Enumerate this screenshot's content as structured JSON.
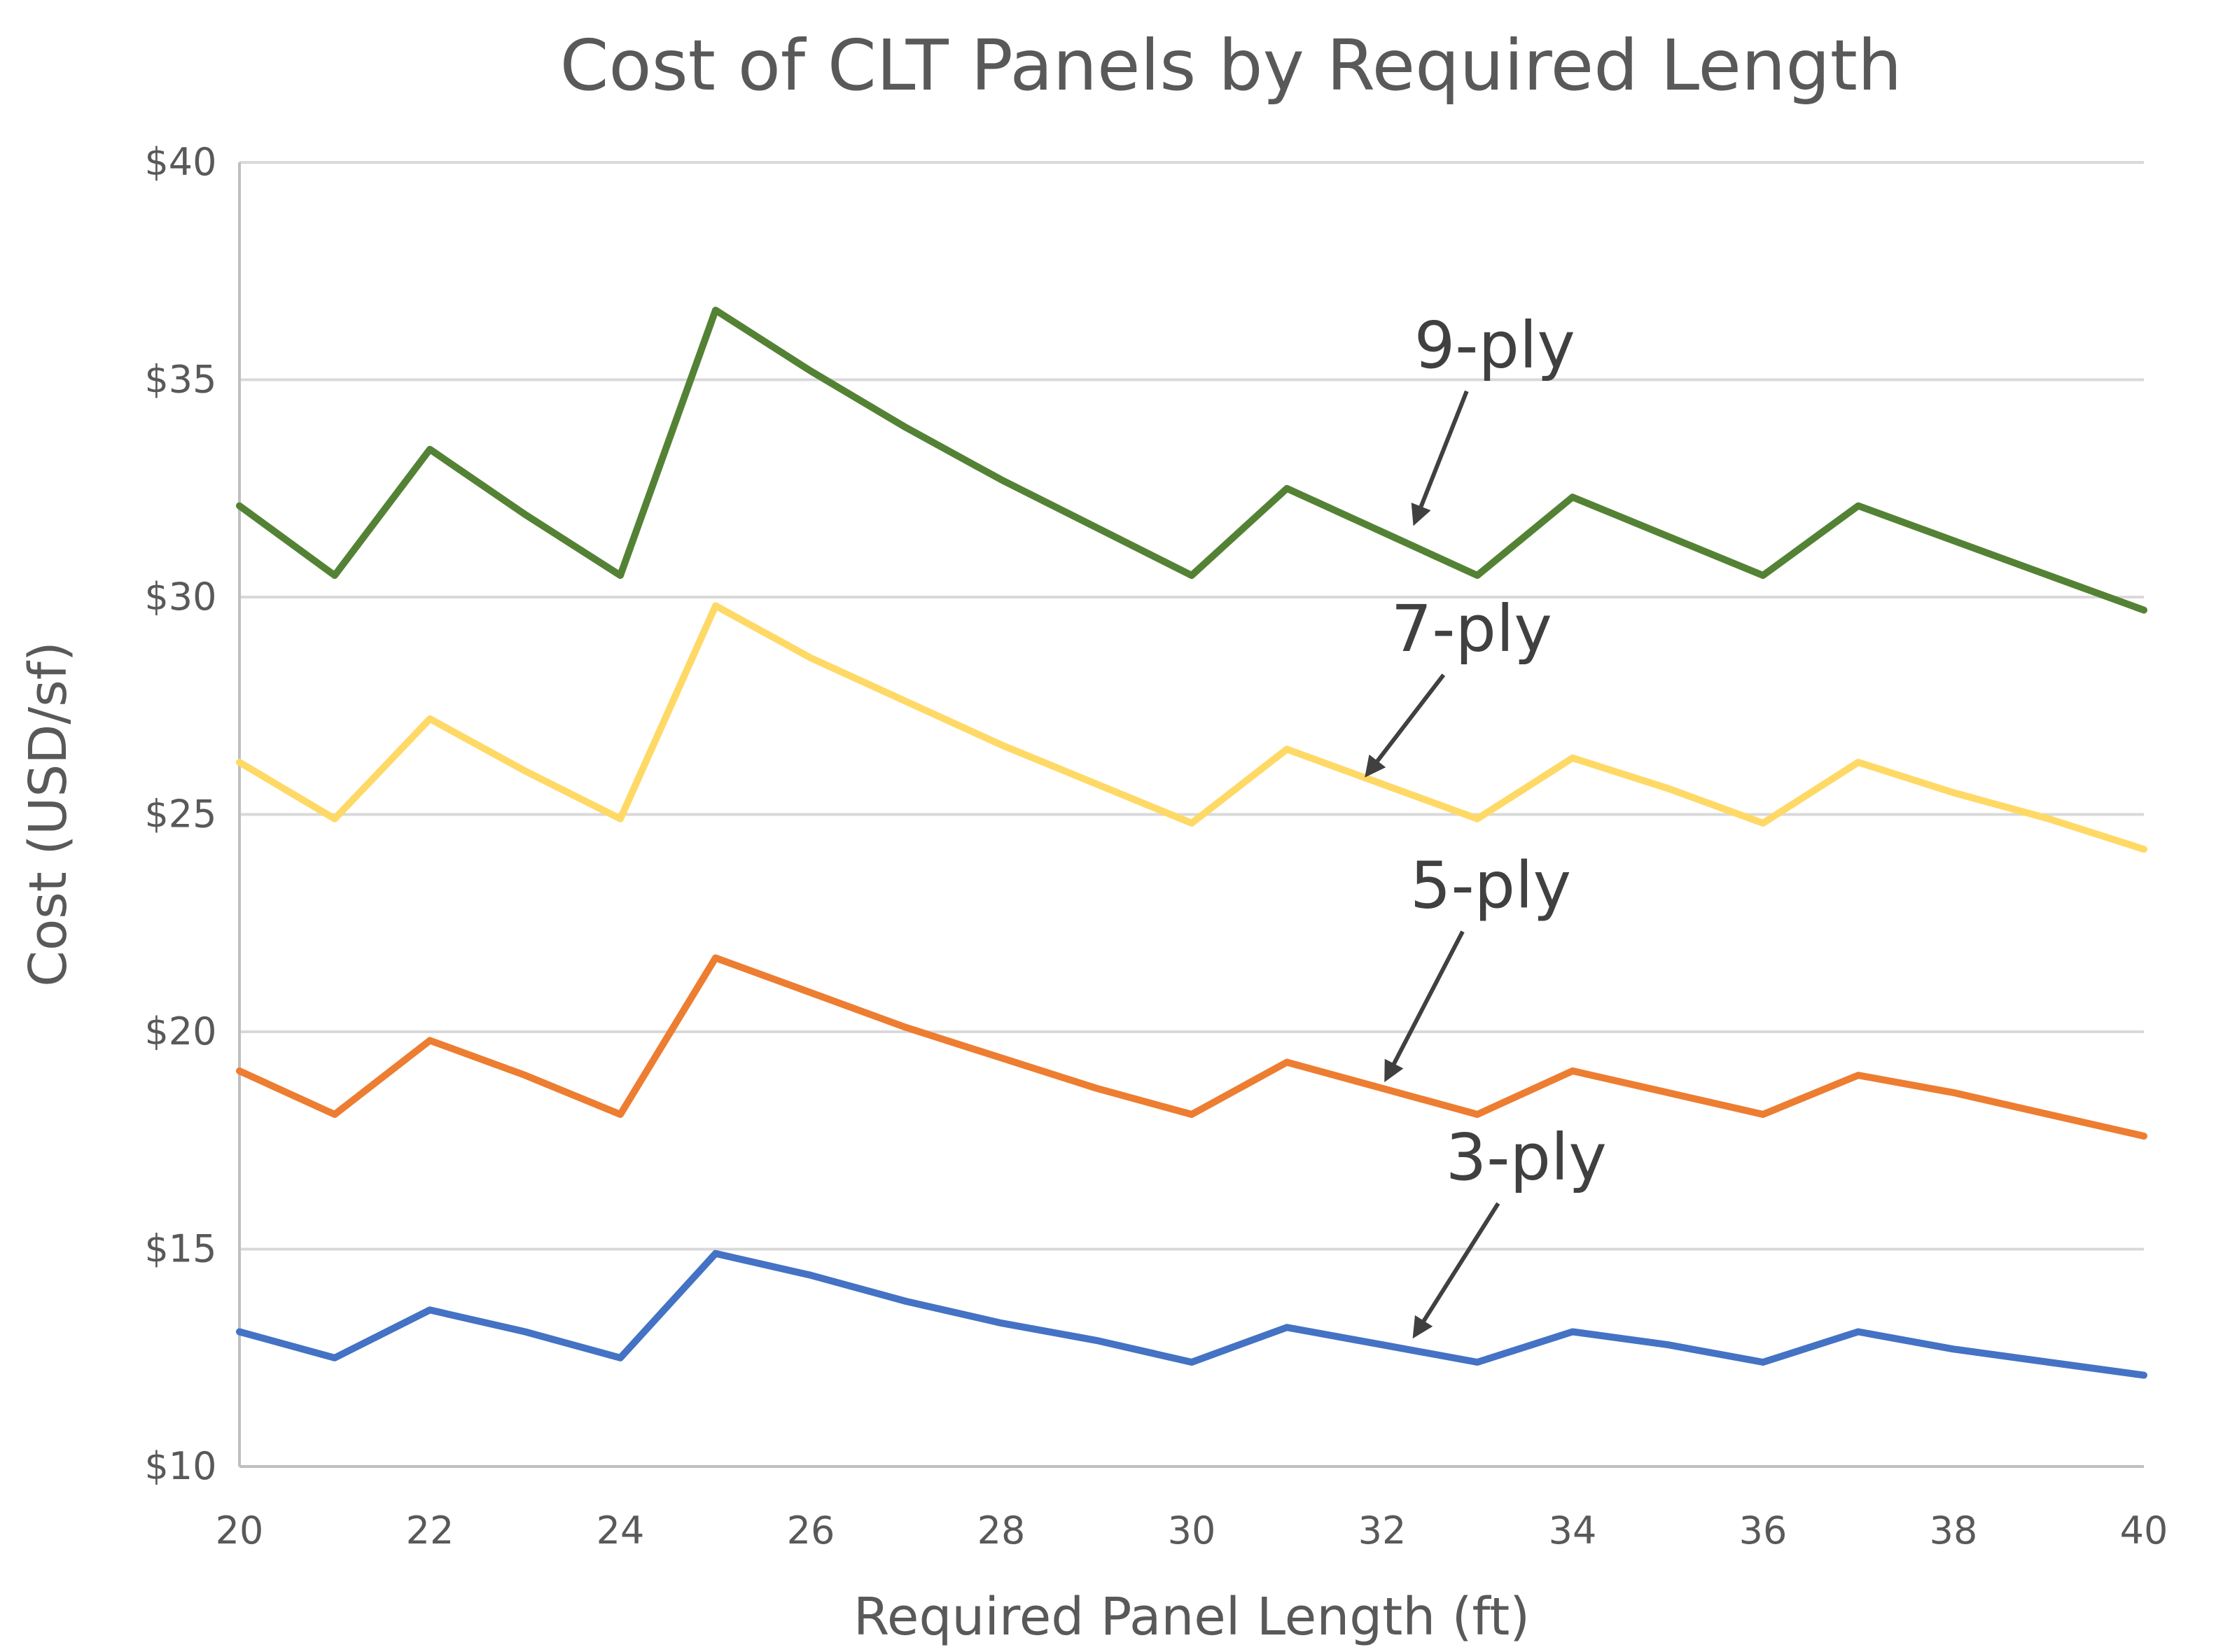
{
  "chart_data": {
    "type": "line",
    "title": "Cost of CLT Panels by Required Length",
    "xlabel": "Required Panel Length (ft)",
    "ylabel": "Cost (USD/sf)",
    "xlim": [
      20,
      40
    ],
    "ylim": [
      10,
      40
    ],
    "x_ticks": [
      20,
      22,
      24,
      26,
      28,
      30,
      32,
      34,
      36,
      38,
      40
    ],
    "x_tick_labels": [
      "20",
      "22",
      "24",
      "26",
      "28",
      "30",
      "32",
      "34",
      "36",
      "38",
      "40"
    ],
    "y_ticks": [
      10,
      15,
      20,
      25,
      30,
      35,
      40
    ],
    "y_tick_labels": [
      "$10",
      "$15",
      "$20",
      "$25",
      "$30",
      "$35",
      "$40"
    ],
    "grid": true,
    "legend": "none",
    "x": [
      20,
      21,
      22,
      23,
      24,
      25,
      26,
      27,
      28,
      29,
      30,
      31,
      32,
      33,
      34,
      35,
      36,
      37,
      38,
      39,
      40
    ],
    "series": [
      {
        "name": "9-ply",
        "color": "#548235",
        "values": [
          32.1,
          30.5,
          33.4,
          31.9,
          30.5,
          36.6,
          35.2,
          33.9,
          32.7,
          31.6,
          30.5,
          32.5,
          31.5,
          30.5,
          32.3,
          31.4,
          30.5,
          32.1,
          31.3,
          30.5,
          29.7
        ],
        "annotation": {
          "text": "9-ply",
          "x": 32.3,
          "y": 31.5
        }
      },
      {
        "name": "7-ply",
        "color": "#FFD966",
        "values": [
          26.2,
          24.9,
          27.2,
          26.0,
          24.9,
          29.8,
          28.6,
          27.6,
          26.6,
          25.7,
          24.8,
          26.5,
          25.7,
          24.9,
          26.3,
          25.6,
          24.8,
          26.2,
          25.5,
          24.9,
          24.2
        ],
        "annotation": {
          "text": "7-ply",
          "x": 31.8,
          "y": 25.7
        }
      },
      {
        "name": "5-ply",
        "color": "#ED7D31",
        "values": [
          19.1,
          18.1,
          19.8,
          19.0,
          18.1,
          21.7,
          20.9,
          20.1,
          19.4,
          18.7,
          18.1,
          19.3,
          18.7,
          18.1,
          19.1,
          18.6,
          18.1,
          19.0,
          18.6,
          18.1,
          17.6
        ],
        "annotation": {
          "text": "5-ply",
          "x": 32.0,
          "y": 18.7
        }
      },
      {
        "name": "3-ply",
        "color": "#4472C4",
        "values": [
          13.1,
          12.5,
          13.6,
          13.1,
          12.5,
          14.9,
          14.4,
          13.8,
          13.3,
          12.9,
          12.4,
          13.2,
          12.8,
          12.4,
          13.1,
          12.8,
          12.4,
          13.1,
          12.7,
          12.4,
          12.1
        ],
        "annotation": {
          "text": "3-ply",
          "x": 32.3,
          "y": 12.8
        }
      }
    ]
  }
}
